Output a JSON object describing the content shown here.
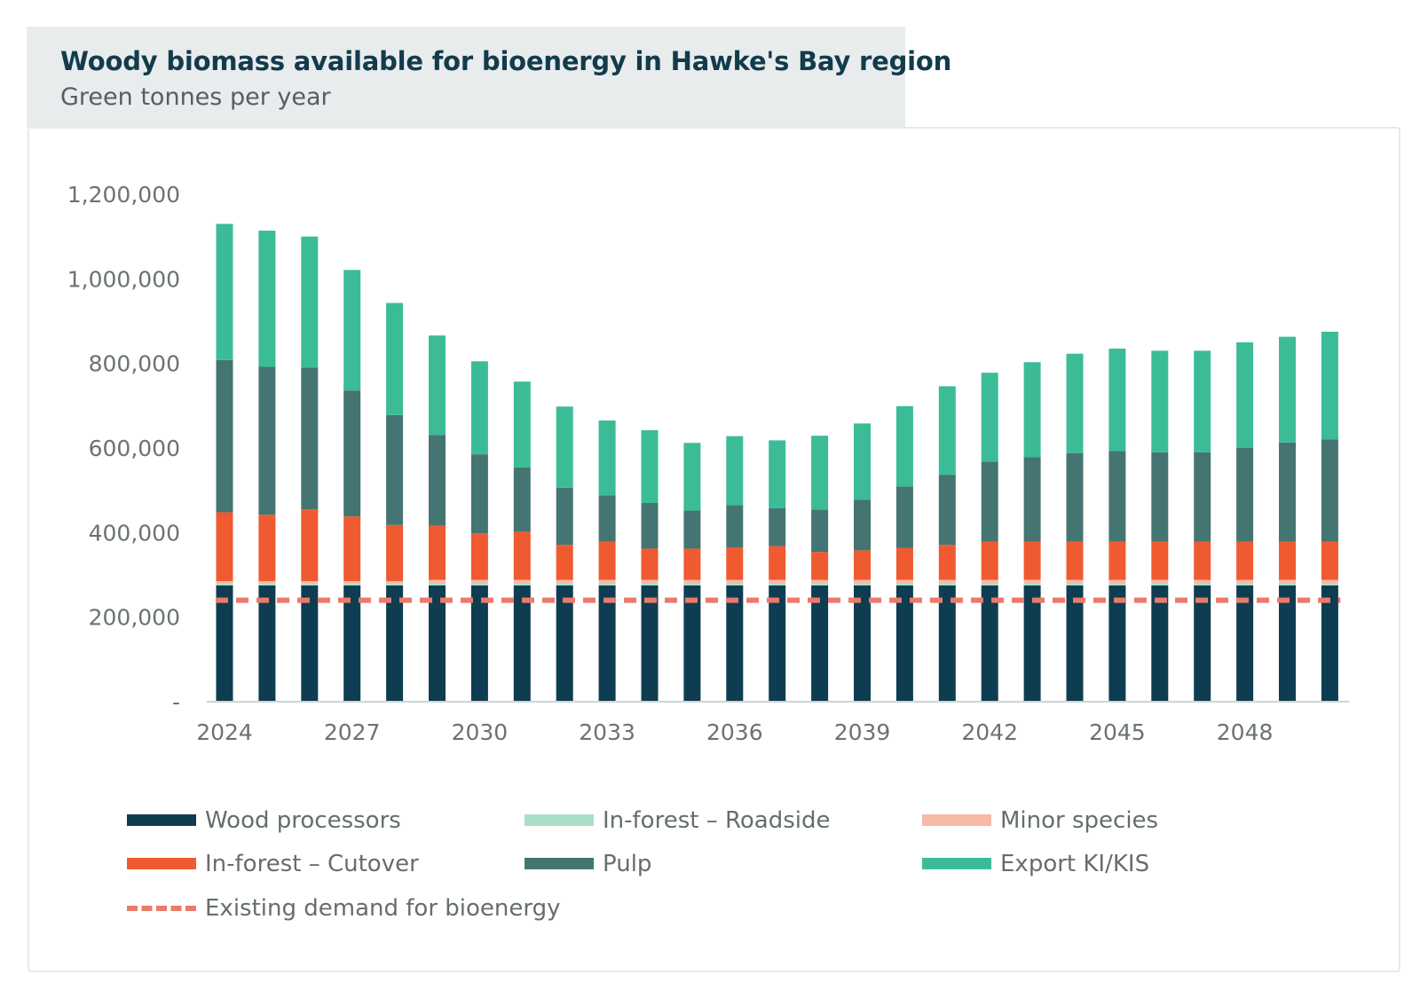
{
  "title": "Woody biomass available for bioenergy in Hawke's Bay region",
  "subtitle": "Green tonnes per year",
  "legend": [
    {
      "label": "Wood processors",
      "color": "#0e3d51"
    },
    {
      "label": "In-forest – Roadside",
      "color": "#a9dfc8"
    },
    {
      "label": "Minor species",
      "color": "#f6b8a7"
    },
    {
      "label": "In-forest – Cutover",
      "color": "#ef5a30"
    },
    {
      "label": "Pulp",
      "color": "#447572"
    },
    {
      "label": "Export KI/KIS",
      "color": "#3bbc97"
    },
    {
      "label": "Existing demand for bioenergy",
      "color": "#ea7a6c",
      "style": "dashed"
    }
  ],
  "chart_data": {
    "type": "bar",
    "stacked": true,
    "title": "Woody biomass available for bioenergy in Hawke's Bay region",
    "subtitle": "Green tonnes per year",
    "x": [
      2024,
      2025,
      2026,
      2027,
      2028,
      2029,
      2030,
      2031,
      2032,
      2033,
      2034,
      2035,
      2036,
      2037,
      2038,
      2039,
      2040,
      2041,
      2042,
      2043,
      2044,
      2045,
      2046,
      2047,
      2048,
      2049,
      2050
    ],
    "x_tick_labels": [
      "2024",
      "2027",
      "2030",
      "2033",
      "2036",
      "2039",
      "2042",
      "2045",
      "2048"
    ],
    "y_tick_labels": [
      "-",
      "200,000",
      "400,000",
      "600,000",
      "800,000",
      "1,000,000",
      "1,200,000"
    ],
    "ylim": [
      0,
      1200000
    ],
    "series": [
      {
        "name": "Wood processors",
        "color": "#0e3d51",
        "values": [
          275000,
          275000,
          275000,
          275000,
          275000,
          275000,
          275000,
          275000,
          275000,
          275000,
          275000,
          275000,
          275000,
          275000,
          275000,
          275000,
          275000,
          275000,
          275000,
          275000,
          275000,
          275000,
          275000,
          275000,
          275000,
          275000,
          275000
        ]
      },
      {
        "name": "In-forest – Roadside",
        "color": "#a9dfc8",
        "values": [
          5000,
          5000,
          5000,
          5000,
          5000,
          5000,
          5000,
          5000,
          5000,
          5000,
          5000,
          5000,
          5000,
          5000,
          5000,
          5000,
          5000,
          5000,
          5000,
          5000,
          5000,
          5000,
          5000,
          5000,
          5000,
          5000,
          5000
        ]
      },
      {
        "name": "Minor species",
        "color": "#f6b8a7",
        "values": [
          5000,
          5000,
          5000,
          5000,
          5000,
          8000,
          8000,
          8000,
          8000,
          8000,
          8000,
          8000,
          8000,
          8000,
          8000,
          8000,
          8000,
          8000,
          8000,
          8000,
          8000,
          8000,
          8000,
          8000,
          8000,
          8000,
          8000
        ]
      },
      {
        "name": "In-forest – Cutover",
        "color": "#ef5a30",
        "values": [
          163000,
          157000,
          170000,
          153000,
          133000,
          128000,
          110000,
          114000,
          83000,
          90000,
          74000,
          74000,
          77000,
          80000,
          66000,
          70000,
          76000,
          83000,
          90000,
          90000,
          90000,
          90000,
          90000,
          90000,
          90000,
          90000,
          90000
        ]
      },
      {
        "name": "Pulp",
        "color": "#447572",
        "values": [
          360000,
          350000,
          335000,
          298000,
          260000,
          215000,
          187000,
          152000,
          135000,
          110000,
          108000,
          90000,
          100000,
          90000,
          100000,
          120000,
          145000,
          165000,
          190000,
          200000,
          210000,
          215000,
          212000,
          212000,
          222000,
          235000,
          242000
        ]
      },
      {
        "name": "Export KI/KIS",
        "color": "#3bbc97",
        "values": [
          322000,
          322000,
          310000,
          285000,
          265000,
          235000,
          220000,
          203000,
          192000,
          177000,
          172000,
          160000,
          163000,
          160000,
          175000,
          180000,
          190000,
          210000,
          210000,
          225000,
          235000,
          242000,
          240000,
          240000,
          250000,
          250000,
          255000
        ]
      }
    ],
    "reference_lines": [
      {
        "name": "Existing demand for bioenergy",
        "value": 240000,
        "style": "dashed",
        "color": "#ea7a6c"
      }
    ],
    "legend_position": "bottom",
    "grid": false
  }
}
